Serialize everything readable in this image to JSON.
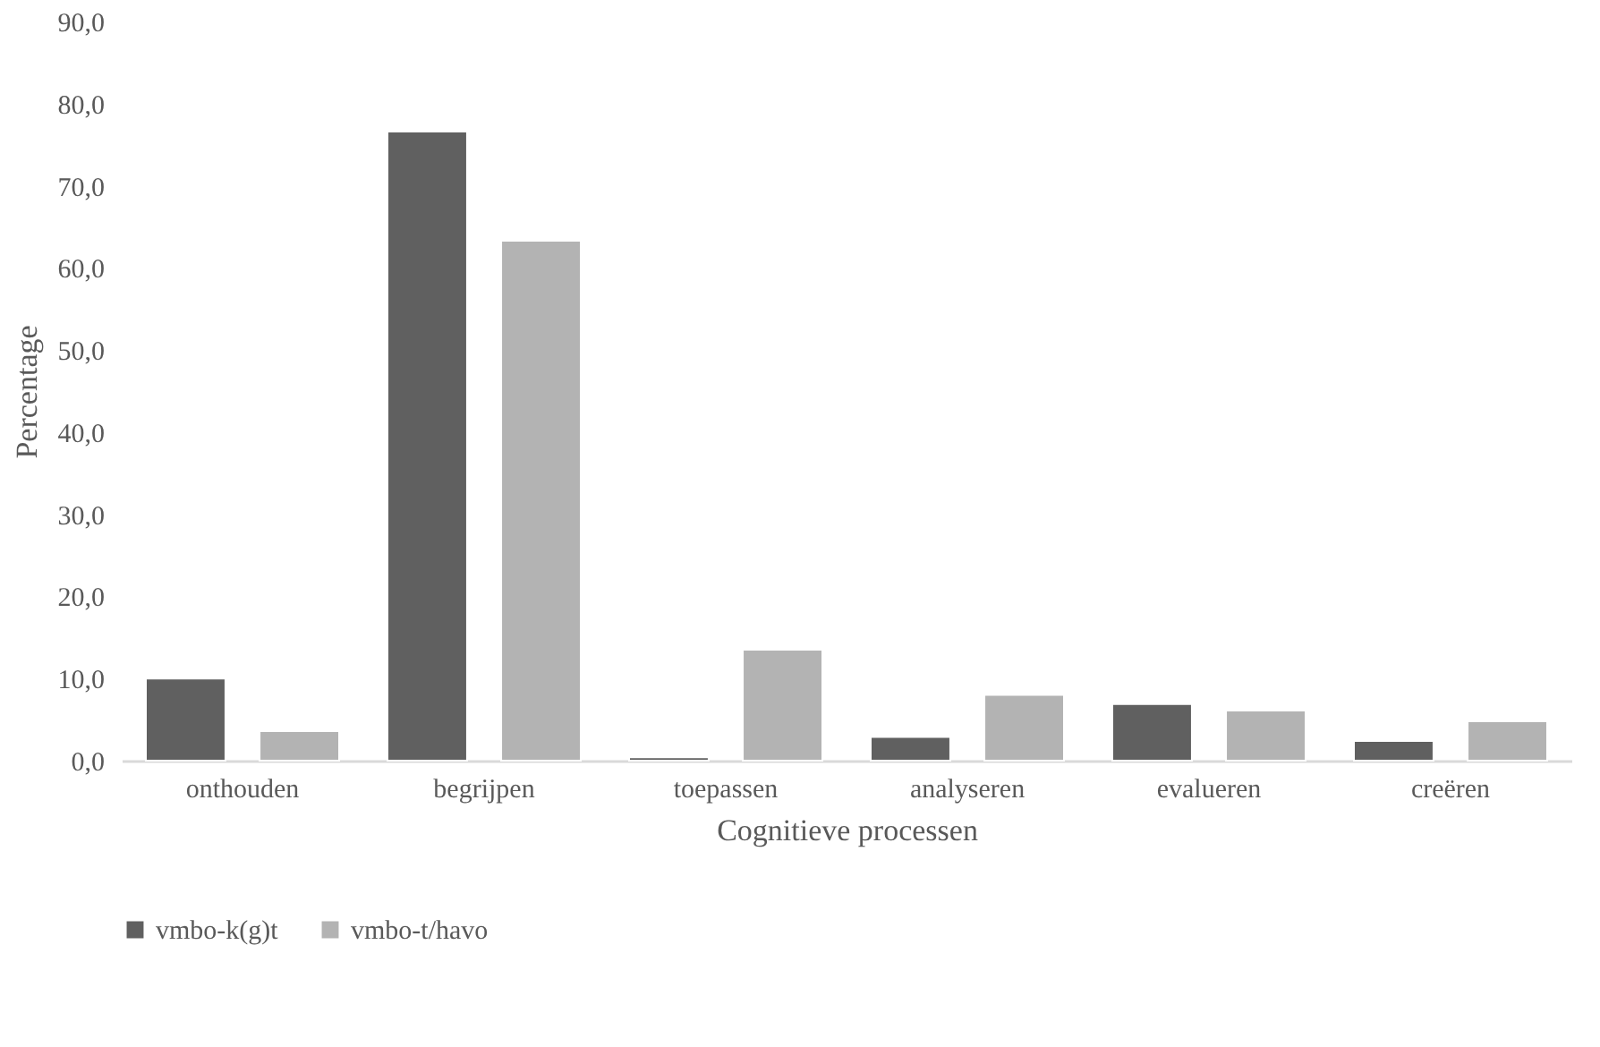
{
  "chart_data": {
    "type": "bar",
    "xlabel": "Cognitieve processen",
    "ylabel": "Percentage",
    "categories": [
      "onthouden",
      "begrijpen",
      "toepassen",
      "analyseren",
      "evalueren",
      "creëren"
    ],
    "series": [
      {
        "name": "vmbo-k(g)t",
        "color": "#606060",
        "values": [
          10.0,
          76.6,
          0.4,
          2.9,
          6.9,
          2.4
        ]
      },
      {
        "name": "vmbo-t/havo",
        "color": "#b3b3b3",
        "values": [
          3.6,
          63.3,
          13.5,
          8.0,
          6.1,
          4.8
        ]
      }
    ],
    "ylim": [
      0,
      90
    ],
    "yticks": [
      {
        "value": 0,
        "label": "0,0"
      },
      {
        "value": 10,
        "label": "10,0"
      },
      {
        "value": 20,
        "label": "20,0"
      },
      {
        "value": 30,
        "label": "30,0"
      },
      {
        "value": 40,
        "label": "40,0"
      },
      {
        "value": 50,
        "label": "50,0"
      },
      {
        "value": 60,
        "label": "60,0"
      },
      {
        "value": 70,
        "label": "70,0"
      },
      {
        "value": 80,
        "label": "80,0"
      },
      {
        "value": 90,
        "label": "90,0"
      }
    ],
    "grid": false,
    "legend": "bottom"
  }
}
